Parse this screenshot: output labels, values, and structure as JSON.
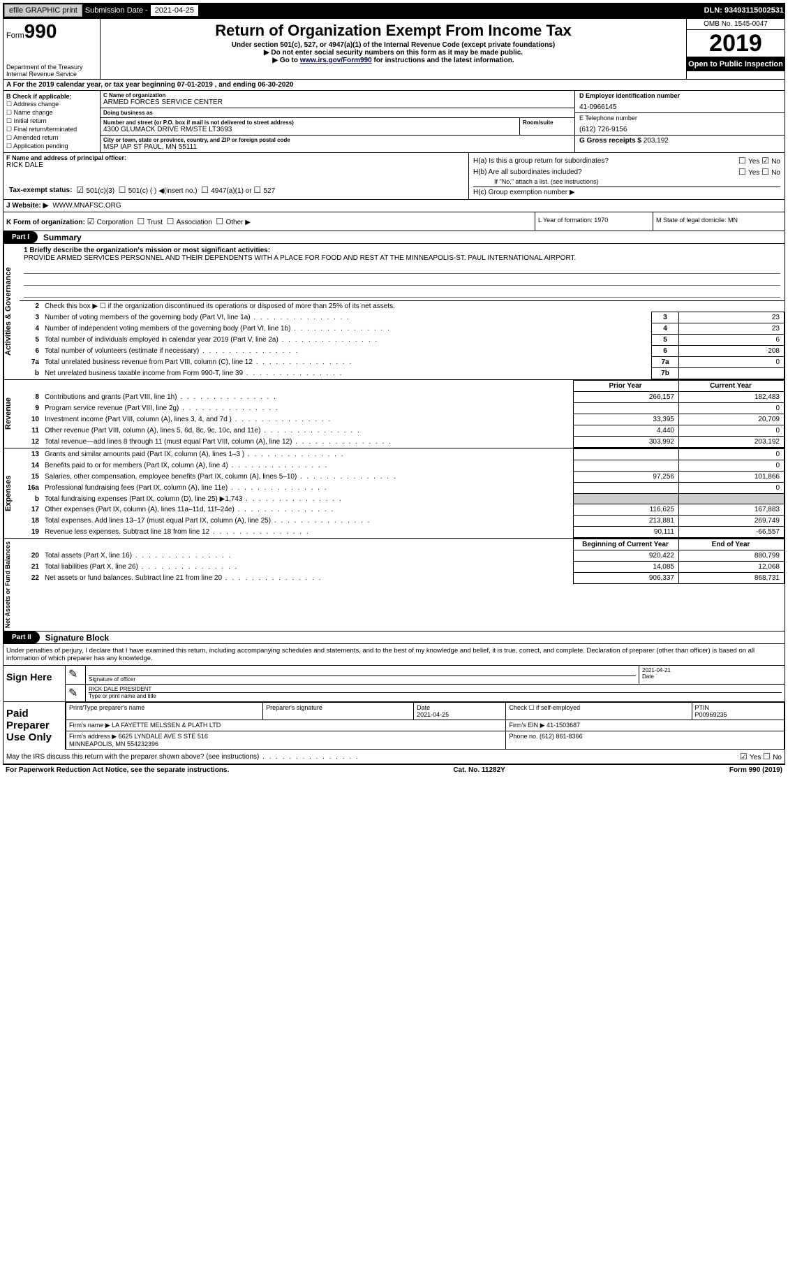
{
  "topbar": {
    "efile": "efile GRAPHIC print",
    "sub_label": "Submission Date - ",
    "sub_date": "2021-04-25",
    "dln": "DLN: 93493115002531"
  },
  "header": {
    "form_word": "Form",
    "form_num": "990",
    "dept": "Department of the Treasury\nInternal Revenue Service",
    "title": "Return of Organization Exempt From Income Tax",
    "subtitle": "Under section 501(c), 527, or 4947(a)(1) of the Internal Revenue Code (except private foundations)",
    "instr1": "Do not enter social security numbers on this form as it may be made public.",
    "instr2_a": "Go to ",
    "instr2_link": "www.irs.gov/Form990",
    "instr2_b": " for instructions and the latest information.",
    "omb": "OMB No. 1545-0047",
    "year": "2019",
    "open": "Open to Public Inspection"
  },
  "rowA": "A For the 2019 calendar year, or tax year beginning 07-01-2019    , and ending 06-30-2020",
  "colB": {
    "title": "B Check if applicable:",
    "items": [
      "Address change",
      "Name change",
      "Initial return",
      "Final return/terminated",
      "Amended return",
      "Application pending"
    ]
  },
  "colC": {
    "name_lbl": "C Name of organization",
    "name": "ARMED FORCES SERVICE CENTER",
    "dba_lbl": "Doing business as",
    "dba": "",
    "addr_lbl": "Number and street (or P.O. box if mail is not delivered to street address)",
    "addr": "4300 GLUMACK DRIVE RM/STE LT3693",
    "room_lbl": "Room/suite",
    "city_lbl": "City or town, state or province, country, and ZIP or foreign postal code",
    "city": "MSP IAP ST PAUL, MN  55111"
  },
  "colD": {
    "ein_lbl": "D Employer identification number",
    "ein": "41-0966145",
    "phone_lbl": "E Telephone number",
    "phone": "(612) 726-9156",
    "gross_lbl": "G Gross receipts $ ",
    "gross": "203,192"
  },
  "colF": {
    "lbl": "F  Name and address of principal officer:",
    "name": "RICK DALE"
  },
  "colH": {
    "ha": "H(a)  Is this a group return for subordinates?",
    "hb": "H(b)  Are all subordinates included?",
    "hb_note": "If \"No,\" attach a list. (see instructions)",
    "hc": "H(c)  Group exemption number ▶",
    "yes": "Yes",
    "no": "No"
  },
  "taxexempt": {
    "lbl": "Tax-exempt status:",
    "c3": "501(c)(3)",
    "c": "501(c) (  ) ◀(insert no.)",
    "a1": "4947(a)(1) or",
    "s527": "527"
  },
  "website": {
    "lbl": "J   Website: ▶",
    "val": "WWW.MNAFSC.ORG"
  },
  "rowK": {
    "lbl": "K Form of organization:",
    "corp": "Corporation",
    "trust": "Trust",
    "assoc": "Association",
    "other": "Other ▶"
  },
  "rowL": "L Year of formation: 1970",
  "rowM": "M State of legal domicile: MN",
  "part1": {
    "tag": "Part I",
    "title": "Summary"
  },
  "activities": {
    "label": "Activities & Governance",
    "line1_lbl": "1  Briefly describe the organization's mission or most significant activities:",
    "line1_val": "PROVIDE ARMED SERVICES PERSONNEL AND THEIR DEPENDENTS WITH A PLACE FOR FOOD AND REST AT THE MINNEAPOLIS-ST. PAUL INTERNATIONAL AIRPORT.",
    "line2": "Check this box ▶ ☐  if the organization discontinued its operations or disposed of more than 25% of its net assets.",
    "rows": [
      {
        "n": "3",
        "d": "Number of voting members of the governing body (Part VI, line 1a)",
        "b": "3",
        "v": "23"
      },
      {
        "n": "4",
        "d": "Number of independent voting members of the governing body (Part VI, line 1b)",
        "b": "4",
        "v": "23"
      },
      {
        "n": "5",
        "d": "Total number of individuals employed in calendar year 2019 (Part V, line 2a)",
        "b": "5",
        "v": "6"
      },
      {
        "n": "6",
        "d": "Total number of volunteers (estimate if necessary)",
        "b": "6",
        "v": "208"
      },
      {
        "n": "7a",
        "d": "Total unrelated business revenue from Part VIII, column (C), line 12",
        "b": "7a",
        "v": "0"
      },
      {
        "n": "b",
        "d": "Net unrelated business taxable income from Form 990-T, line 39",
        "b": "7b",
        "v": ""
      }
    ]
  },
  "revenue": {
    "label": "Revenue",
    "prior_hdr": "Prior Year",
    "curr_hdr": "Current Year",
    "rows": [
      {
        "n": "8",
        "d": "Contributions and grants (Part VIII, line 1h)",
        "p": "266,157",
        "c": "182,483"
      },
      {
        "n": "9",
        "d": "Program service revenue (Part VIII, line 2g)",
        "p": "",
        "c": "0"
      },
      {
        "n": "10",
        "d": "Investment income (Part VIII, column (A), lines 3, 4, and 7d )",
        "p": "33,395",
        "c": "20,709"
      },
      {
        "n": "11",
        "d": "Other revenue (Part VIII, column (A), lines 5, 6d, 8c, 9c, 10c, and 11e)",
        "p": "4,440",
        "c": "0"
      },
      {
        "n": "12",
        "d": "Total revenue—add lines 8 through 11 (must equal Part VIII, column (A), line 12)",
        "p": "303,992",
        "c": "203,192"
      }
    ]
  },
  "expenses": {
    "label": "Expenses",
    "rows": [
      {
        "n": "13",
        "d": "Grants and similar amounts paid (Part IX, column (A), lines 1–3 )",
        "p": "",
        "c": "0"
      },
      {
        "n": "14",
        "d": "Benefits paid to or for members (Part IX, column (A), line 4)",
        "p": "",
        "c": "0"
      },
      {
        "n": "15",
        "d": "Salaries, other compensation, employee benefits (Part IX, column (A), lines 5–10)",
        "p": "97,256",
        "c": "101,866"
      },
      {
        "n": "16a",
        "d": "Professional fundraising fees (Part IX, column (A), line 11e)",
        "p": "",
        "c": "0"
      },
      {
        "n": "b",
        "d": "Total fundraising expenses (Part IX, column (D), line 25) ▶1,743",
        "p": "GREY",
        "c": "GREY"
      },
      {
        "n": "17",
        "d": "Other expenses (Part IX, column (A), lines 11a–11d, 11f–24e)",
        "p": "116,625",
        "c": "167,883"
      },
      {
        "n": "18",
        "d": "Total expenses. Add lines 13–17 (must equal Part IX, column (A), line 25)",
        "p": "213,881",
        "c": "269,749"
      },
      {
        "n": "19",
        "d": "Revenue less expenses. Subtract line 18 from line 12",
        "p": "90,111",
        "c": "-66,557"
      }
    ]
  },
  "netassets": {
    "label": "Net Assets or Fund Balances",
    "beg_hdr": "Beginning of Current Year",
    "end_hdr": "End of Year",
    "rows": [
      {
        "n": "20",
        "d": "Total assets (Part X, line 16)",
        "p": "920,422",
        "c": "880,799"
      },
      {
        "n": "21",
        "d": "Total liabilities (Part X, line 26)",
        "p": "14,085",
        "c": "12,068"
      },
      {
        "n": "22",
        "d": "Net assets or fund balances. Subtract line 21 from line 20",
        "p": "906,337",
        "c": "868,731"
      }
    ]
  },
  "part2": {
    "tag": "Part II",
    "title": "Signature Block"
  },
  "sig": {
    "penalty": "Under penalties of perjury, I declare that I have examined this return, including accompanying schedules and statements, and to the best of my knowledge and belief, it is true, correct, and complete. Declaration of preparer (other than officer) is based on all information of which preparer has any knowledge.",
    "sign_here": "Sign Here",
    "sig_officer": "Signature of officer",
    "date_lbl": "Date",
    "sig_date": "2021-04-21",
    "name_title": "RICK DALE  PRESIDENT",
    "type_lbl": "Type or print name and title"
  },
  "paid": {
    "label": "Paid Preparer Use Only",
    "pname_lbl": "Print/Type preparer's name",
    "psig_lbl": "Preparer's signature",
    "pdate_lbl": "Date",
    "pdate": "2021-04-25",
    "check_lbl": "Check ☐  if self-employed",
    "ptin_lbl": "PTIN",
    "ptin": "P00969235",
    "firm_lbl": "Firm's name    ▶",
    "firm": "LA FAYETTE MELSSEN & PLATH LTD",
    "fein_lbl": "Firm's EIN ▶",
    "fein": "41-1503687",
    "addr_lbl": "Firm's address ▶",
    "addr": "6625 LYNDALE AVE S STE 516\nMINNEAPOLIS, MN  554232396",
    "phone_lbl": "Phone no.",
    "phone": "(612) 861-8366",
    "discuss": "May the IRS discuss this return with the preparer shown above? (see instructions)"
  },
  "footer": {
    "left": "For Paperwork Reduction Act Notice, see the separate instructions.",
    "mid": "Cat. No. 11282Y",
    "right": "Form 990 (2019)"
  }
}
